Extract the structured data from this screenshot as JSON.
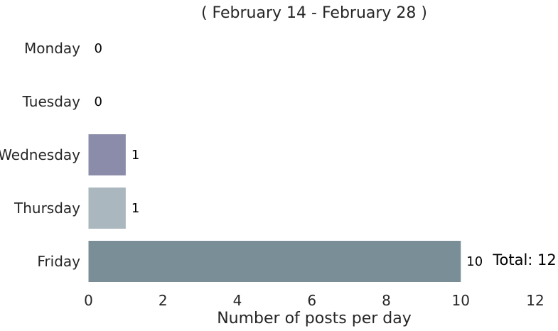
{
  "chart_data": {
    "type": "bar",
    "orientation": "horizontal",
    "title": "( February 14 - February 28 )",
    "xlabel": "Number of posts per day",
    "ylabel": "",
    "categories": [
      "Monday",
      "Tuesday",
      "Wednesday",
      "Thursday",
      "Friday"
    ],
    "values": [
      0,
      0,
      1,
      1,
      10
    ],
    "data_labels": [
      "0",
      "0",
      "1",
      "1",
      "10"
    ],
    "bar_colors": [
      "#8a8ca9",
      "#8a8ca9",
      "#8a8ca9",
      "#aab7be",
      "#798e97"
    ],
    "xlim": [
      0,
      12
    ],
    "xticks": [
      0,
      2,
      4,
      6,
      8,
      10,
      12
    ],
    "xtick_labels": [
      "0",
      "2",
      "4",
      "6",
      "8",
      "10",
      "12"
    ],
    "annotation": "Total: 12",
    "grid": false,
    "legend": "none"
  }
}
